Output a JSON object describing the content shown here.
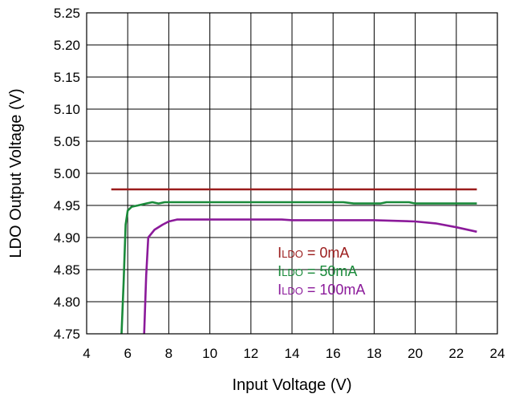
{
  "chart_data": {
    "type": "line",
    "xlabel": "Input Voltage (V)",
    "ylabel": "LDO Output Voltage (V)",
    "xlim": [
      4,
      24
    ],
    "ylim": [
      4.75,
      5.25
    ],
    "x_ticks": [
      "4",
      "6",
      "8",
      "10",
      "12",
      "14",
      "16",
      "18",
      "20",
      "22",
      "24"
    ],
    "y_ticks": [
      "4.75",
      "4.80",
      "4.85",
      "4.90",
      "4.95",
      "5.00",
      "5.05",
      "5.10",
      "5.15",
      "5.20",
      "5.25"
    ],
    "grid": true,
    "legend_position": "center-right",
    "series": [
      {
        "name": "ILDO = 0mA",
        "label_main": "I",
        "label_sub": "LDO",
        "label_rest": " = 0mA",
        "color": "#9b1c1c",
        "points": [
          [
            5.2,
            4.975
          ],
          [
            23,
            4.975
          ]
        ]
      },
      {
        "name": "ILDO = 50mA",
        "label_main": "I",
        "label_sub": "LDO",
        "label_rest": " = 50mA",
        "color": "#1a8a3a",
        "points": [
          [
            5.7,
            4.75
          ],
          [
            5.8,
            4.83
          ],
          [
            5.9,
            4.92
          ],
          [
            6.0,
            4.942
          ],
          [
            6.2,
            4.948
          ],
          [
            6.5,
            4.95
          ],
          [
            6.9,
            4.953
          ],
          [
            7.2,
            4.955
          ],
          [
            7.5,
            4.953
          ],
          [
            7.8,
            4.955
          ],
          [
            10,
            4.955
          ],
          [
            14,
            4.955
          ],
          [
            16.5,
            4.955
          ],
          [
            17,
            4.953
          ],
          [
            18.3,
            4.953
          ],
          [
            18.6,
            4.955
          ],
          [
            19.7,
            4.955
          ],
          [
            20,
            4.953
          ],
          [
            23,
            4.953
          ]
        ]
      },
      {
        "name": "ILDO = 100mA",
        "label_main": "I",
        "label_sub": "LDO",
        "label_rest": " = 100mA",
        "color": "#8b1a9a",
        "points": [
          [
            6.8,
            4.75
          ],
          [
            6.9,
            4.84
          ],
          [
            7.0,
            4.9
          ],
          [
            7.3,
            4.912
          ],
          [
            7.7,
            4.92
          ],
          [
            8.0,
            4.925
          ],
          [
            8.4,
            4.928
          ],
          [
            10,
            4.928
          ],
          [
            13.5,
            4.928
          ],
          [
            14,
            4.927
          ],
          [
            16,
            4.927
          ],
          [
            18,
            4.927
          ],
          [
            19,
            4.926
          ],
          [
            20,
            4.925
          ],
          [
            21,
            4.922
          ],
          [
            22,
            4.916
          ],
          [
            23,
            4.909
          ]
        ]
      }
    ]
  }
}
